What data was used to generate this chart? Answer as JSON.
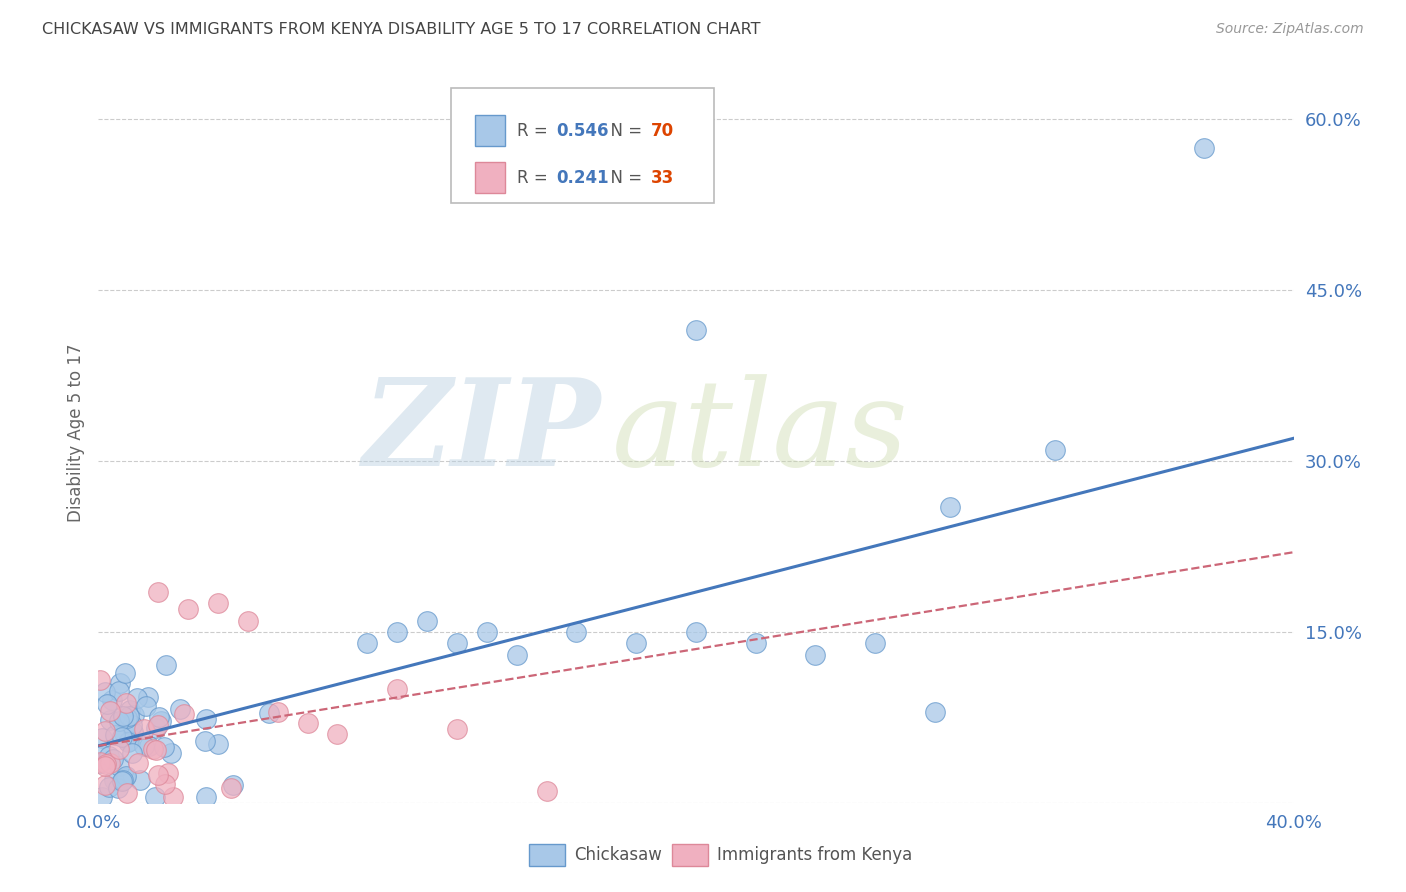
{
  "title": "CHICKASAW VS IMMIGRANTS FROM KENYA DISABILITY AGE 5 TO 17 CORRELATION CHART",
  "source": "Source: ZipAtlas.com",
  "ylabel": "Disability Age 5 to 17",
  "watermark_zip": "ZIP",
  "watermark_atlas": "atlas",
  "xlim": [
    0.0,
    0.4
  ],
  "ylim": [
    0.0,
    0.65
  ],
  "xticks": [
    0.0,
    0.4
  ],
  "xtick_labels": [
    "0.0%",
    "40.0%"
  ],
  "yticks": [
    0.15,
    0.3,
    0.45,
    0.6
  ],
  "ytick_labels": [
    "15.0%",
    "30.0%",
    "45.0%",
    "60.0%"
  ],
  "series1_name": "Chickasaw",
  "series1_R": 0.546,
  "series1_N": 70,
  "series1_color": "#a8c8e8",
  "series1_edge_color": "#6699cc",
  "series1_line_color": "#4477bb",
  "series2_name": "Immigrants from Kenya",
  "series2_R": 0.241,
  "series2_N": 33,
  "series2_color": "#f0b0c0",
  "series2_edge_color": "#dd8899",
  "series2_line_color": "#cc6677",
  "legend_R_color": "#4477bb",
  "legend_N_color": "#dd4400",
  "background_color": "#ffffff",
  "grid_color": "#cccccc",
  "title_color": "#444444",
  "axis_label_color": "#666666",
  "right_tick_color": "#4477bb",
  "bottom_tick_color": "#4477bb"
}
